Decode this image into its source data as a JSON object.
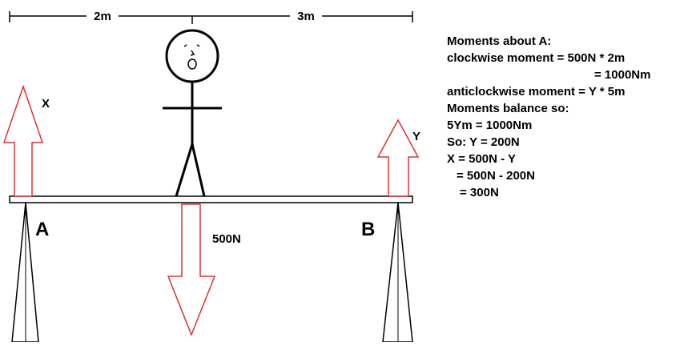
{
  "dimensions": {
    "left": "2m",
    "right": "3m"
  },
  "forces": {
    "x": "X",
    "y": "Y",
    "weight": "500N"
  },
  "supports": {
    "a": "A",
    "b": "B"
  },
  "working": [
    "Moments about A:",
    "clockwise moment = 500N * 2m",
    "= 1000Nm",
    "anticlockwise moment = Y * 5m",
    "Moments balance so:",
    "5Ym = 1000Nm",
    "So: Y = 200N",
    "X = 500N - Y",
    "= 500N - 200N",
    "= 300N"
  ]
}
